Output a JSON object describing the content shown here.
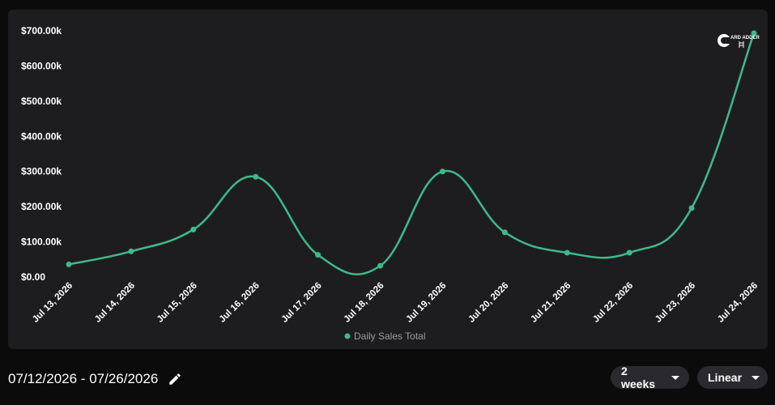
{
  "chart_data": {
    "type": "line",
    "categories": [
      "Jul 13, 2026",
      "Jul 14, 2026",
      "Jul 15, 2026",
      "Jul 16, 2026",
      "Jul 17, 2026",
      "Jul 18, 2026",
      "Jul 19, 2026",
      "Jul 20, 2026",
      "Jul 21, 2026",
      "Jul 22, 2026",
      "Jul 23, 2026",
      "Jul 24, 2026"
    ],
    "series": [
      {
        "name": "Daily Sales Total",
        "values": [
          36000,
          73000,
          135000,
          285000,
          63000,
          32000,
          300000,
          127000,
          69000,
          69000,
          196000,
          693000
        ]
      }
    ],
    "ylim": [
      0,
      700000
    ],
    "yticks": [
      0,
      100000,
      200000,
      300000,
      400000,
      500000,
      600000,
      700000
    ],
    "ytick_labels": [
      "$0.00",
      "$100.00k",
      "$200.00k",
      "$300.00k",
      "$400.00k",
      "$500.00k",
      "$600.00k",
      "$700.00k"
    ],
    "legend_position": "bottom",
    "grid": false,
    "colors": {
      "line": "#3dba8a"
    }
  },
  "logo": {
    "text": "ARD ADDER"
  },
  "controls": {
    "date_range": "07/12/2026 - 07/26/2026",
    "range_label": "2 weeks",
    "scale_label": "Linear"
  },
  "icons": {
    "edit": "pencil-icon",
    "dropdown": "caret-down-icon"
  }
}
